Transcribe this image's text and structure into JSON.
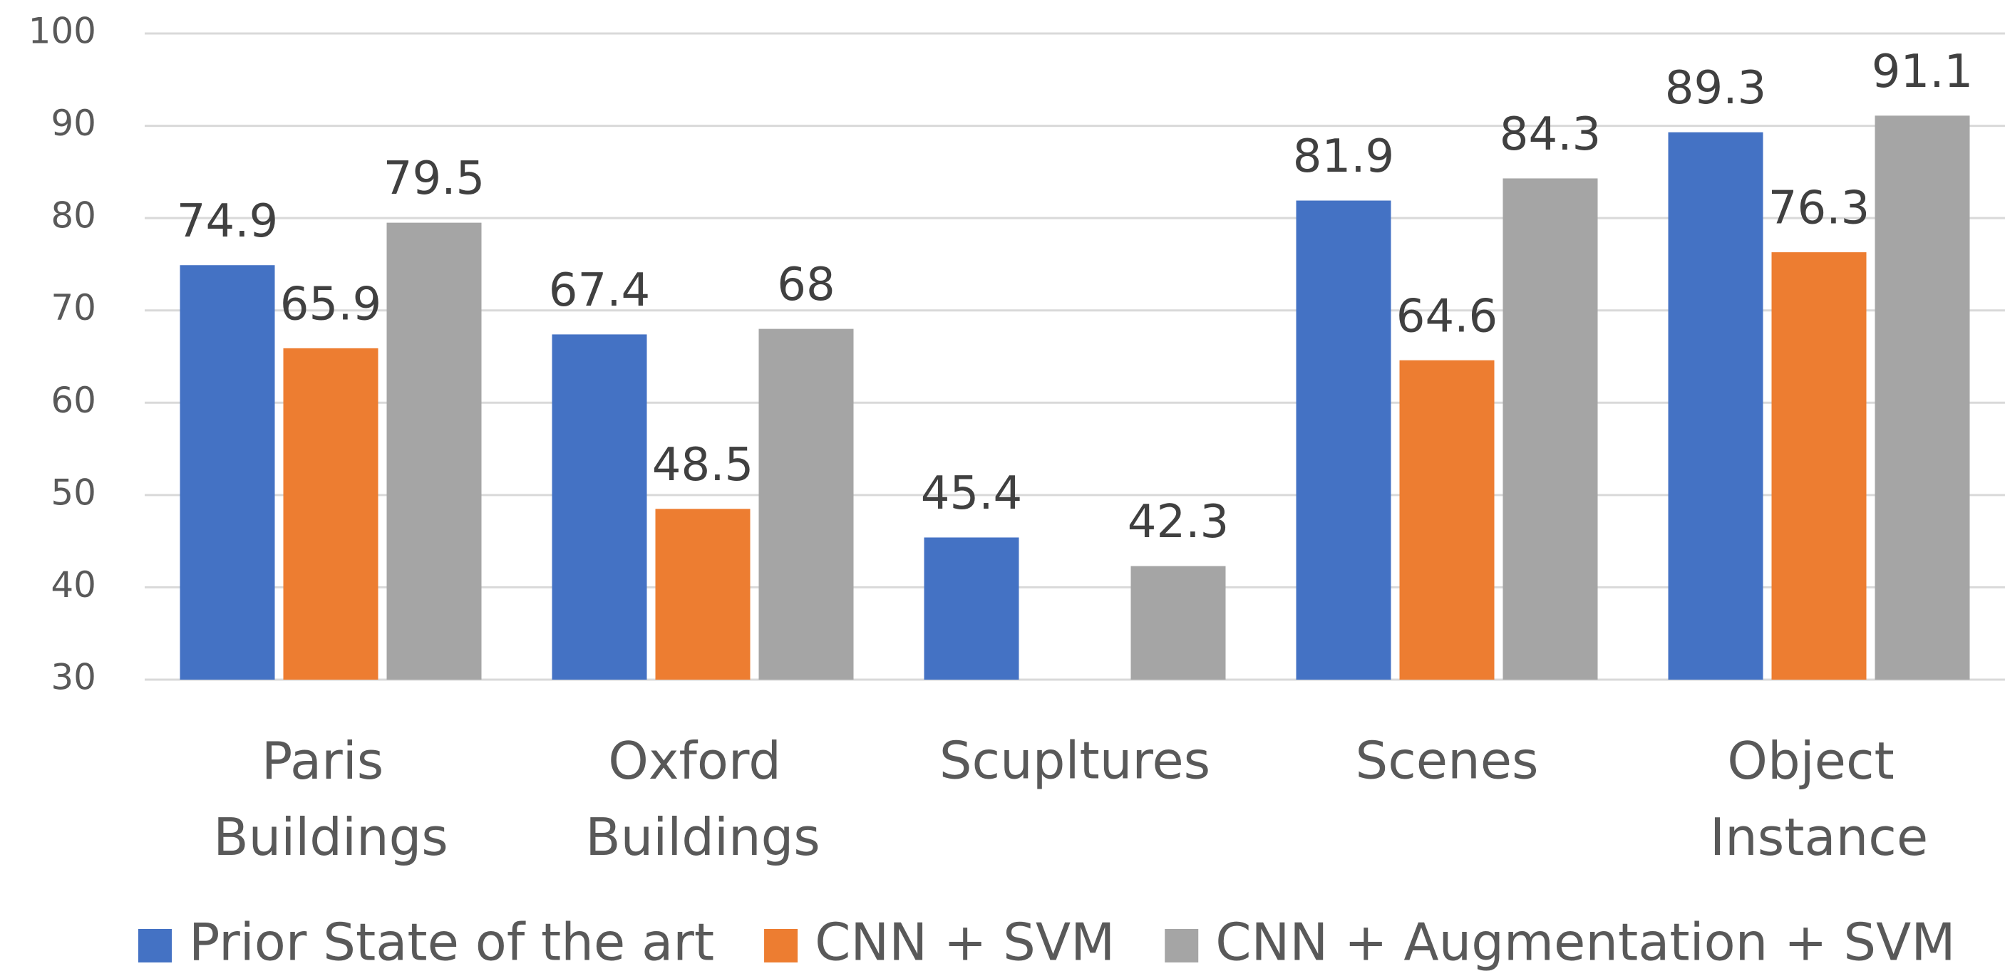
{
  "chart_data": {
    "type": "bar",
    "categories": [
      "Paris Buildings",
      "Oxford Buildings",
      "Scupltures",
      "Scenes",
      "Object Instance"
    ],
    "series": [
      {
        "name": "Prior State of the art",
        "color": "#4472c4",
        "values": [
          74.9,
          67.4,
          45.4,
          81.9,
          89.3
        ]
      },
      {
        "name": "CNN + SVM",
        "color": "#ed7d31",
        "values": [
          65.9,
          48.5,
          null,
          64.6,
          76.3
        ]
      },
      {
        "name": "CNN + Augmentation + SVM",
        "color": "#a5a5a5",
        "values": [
          79.5,
          68,
          42.3,
          84.3,
          91.1
        ]
      }
    ],
    "ylim": [
      30,
      100
    ],
    "yticks": [
      30,
      40,
      50,
      60,
      70,
      80,
      90,
      100
    ],
    "grid": true,
    "legend": "bottom"
  }
}
